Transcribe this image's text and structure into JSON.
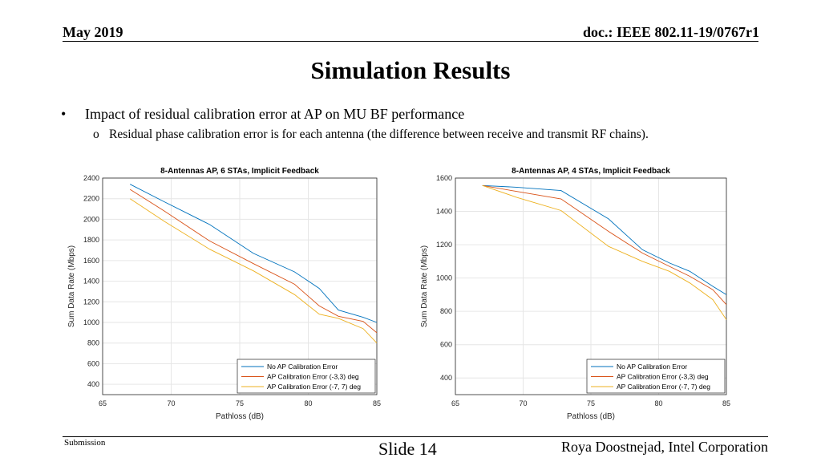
{
  "header": {
    "date": "May 2019",
    "doc": "doc.: IEEE 802.11-19/0767r1"
  },
  "title": "Simulation Results",
  "bullets": {
    "main_marker": "•",
    "main": "Impact of residual calibration error at AP on MU BF performance",
    "sub_marker": "o",
    "sub": "Residual phase calibration error is for each antenna (the difference between receive and transmit RF chains)."
  },
  "colors": {
    "series1": "#0072BD",
    "series2": "#D95319",
    "series3": "#EDB120"
  },
  "chart_data": [
    {
      "type": "line",
      "title": "8-Antennas AP, 6 STAs, Implicit Feedback",
      "xlabel": "Pathloss (dB)",
      "ylabel": "Sum Data Rate (Mbps)",
      "xlim": [
        65,
        85
      ],
      "ylim": [
        300,
        2400
      ],
      "xticks": [
        65,
        70,
        75,
        80,
        85
      ],
      "yticks": [
        400,
        600,
        800,
        1000,
        1200,
        1400,
        1600,
        1800,
        2000,
        2200,
        2400
      ],
      "grid": true,
      "legend": "bottom-right",
      "series": [
        {
          "name": "No AP Calibration Error",
          "x": [
            67,
            69.5,
            72.8,
            76,
            79,
            80.8,
            82.2,
            84,
            85
          ],
          "y": [
            2340,
            2170,
            1950,
            1670,
            1490,
            1330,
            1120,
            1050,
            1000
          ]
        },
        {
          "name": "AP Calibration Error (-3,3) deg",
          "x": [
            67,
            69.5,
            72.8,
            76,
            79,
            80.8,
            82.2,
            84,
            85
          ],
          "y": [
            2290,
            2080,
            1790,
            1570,
            1370,
            1160,
            1060,
            1010,
            900
          ]
        },
        {
          "name": "AP Calibration Error (-7, 7) deg",
          "x": [
            67,
            69.5,
            72.8,
            76,
            79,
            80.8,
            82.2,
            84,
            85
          ],
          "y": [
            2200,
            1980,
            1710,
            1500,
            1270,
            1080,
            1040,
            940,
            800
          ]
        }
      ]
    },
    {
      "type": "line",
      "title": "8-Antennas AP, 4 STAs, Implicit Feedback",
      "xlabel": "Pathloss (dB)",
      "ylabel": "Sum Data Rate (Mbps)",
      "xlim": [
        65,
        85
      ],
      "ylim": [
        300,
        1600
      ],
      "xticks": [
        65,
        70,
        75,
        80,
        85
      ],
      "yticks": [
        400,
        600,
        800,
        1000,
        1200,
        1400,
        1600
      ],
      "grid": true,
      "legend": "bottom-right",
      "series": [
        {
          "name": "No AP Calibration Error",
          "x": [
            67,
            69.5,
            72.8,
            76.3,
            78.8,
            80.8,
            82.3,
            84,
            85
          ],
          "y": [
            1555,
            1545,
            1525,
            1355,
            1170,
            1090,
            1040,
            950,
            900
          ]
        },
        {
          "name": "AP Calibration Error (-3,3) deg",
          "x": [
            67,
            69.5,
            72.8,
            76.3,
            78.8,
            80.8,
            82.3,
            84,
            85
          ],
          "y": [
            1555,
            1520,
            1475,
            1280,
            1150,
            1070,
            1010,
            930,
            840
          ]
        },
        {
          "name": "AP Calibration Error (-7, 7) deg",
          "x": [
            67,
            69.5,
            72.8,
            76.3,
            78.8,
            80.8,
            82.3,
            84,
            85
          ],
          "y": [
            1555,
            1485,
            1405,
            1190,
            1100,
            1040,
            970,
            870,
            750
          ]
        }
      ]
    }
  ],
  "footer": {
    "left": "Submission",
    "slide": "Slide 14",
    "author": "Roya Doostnejad, Intel Corporation"
  }
}
